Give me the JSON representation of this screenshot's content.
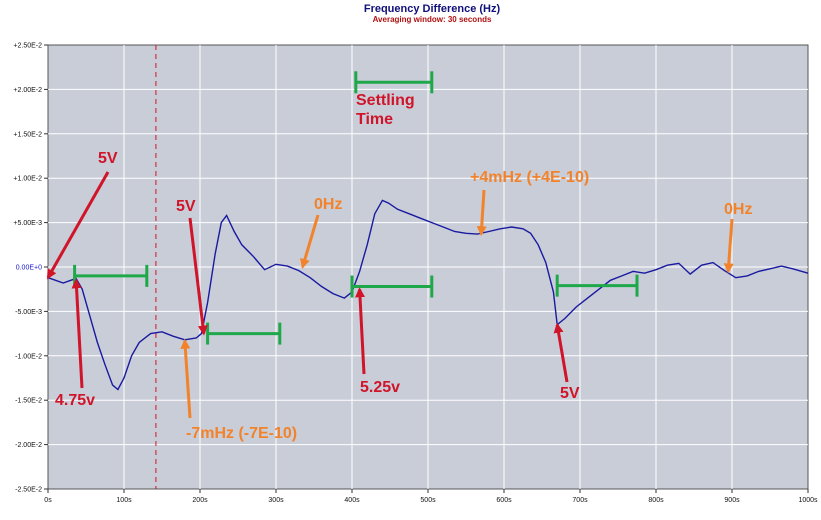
{
  "chart_data": {
    "type": "line",
    "title": "Frequency Difference (Hz)",
    "subtitle": "Averaging window: 30 seconds",
    "xlim": [
      0,
      1000
    ],
    "ylim": [
      -0.025,
      0.025
    ],
    "grid": true,
    "x_ticks": [
      {
        "value": 0,
        "label": "0s"
      },
      {
        "value": 100,
        "label": "100s"
      },
      {
        "value": 200,
        "label": "200s"
      },
      {
        "value": 300,
        "label": "300s"
      },
      {
        "value": 400,
        "label": "400s"
      },
      {
        "value": 500,
        "label": "500s"
      },
      {
        "value": 600,
        "label": "600s"
      },
      {
        "value": 700,
        "label": "700s"
      },
      {
        "value": 800,
        "label": "800s"
      },
      {
        "value": 900,
        "label": "900s"
      },
      {
        "value": 1000,
        "label": "1000s"
      }
    ],
    "y_ticks": [
      {
        "value": 0.025,
        "label": "+2.50E-2"
      },
      {
        "value": 0.02,
        "label": "+2.00E-2"
      },
      {
        "value": 0.015,
        "label": "+1.50E-2"
      },
      {
        "value": 0.01,
        "label": "+1.00E-2"
      },
      {
        "value": 0.005,
        "label": "+5.00E-3"
      },
      {
        "value": 0,
        "label": "0.00E+0"
      },
      {
        "value": -0.005,
        "label": "-5.00E-3"
      },
      {
        "value": -0.01,
        "label": "-1.00E-2"
      },
      {
        "value": -0.015,
        "label": "-1.50E-2"
      },
      {
        "value": -0.02,
        "label": "-2.00E-2"
      },
      {
        "value": -0.025,
        "label": "-2.50E-2"
      }
    ],
    "series": [
      {
        "color": "#1a1aa0",
        "x": [
          0,
          10,
          20,
          30,
          37,
          45,
          55,
          65,
          75,
          85,
          92,
          100,
          110,
          120,
          135,
          150,
          165,
          180,
          195,
          202,
          210,
          220,
          228,
          235,
          245,
          255,
          270,
          285,
          300,
          315,
          330,
          345,
          360,
          375,
          390,
          400,
          410,
          420,
          430,
          440,
          448,
          460,
          475,
          490,
          505,
          520,
          535,
          550,
          565,
          580,
          595,
          610,
          625,
          635,
          645,
          655,
          665,
          670,
          680,
          695,
          710,
          725,
          740,
          755,
          770,
          785,
          800,
          815,
          830,
          845,
          860,
          875,
          890,
          905,
          920,
          935,
          950,
          965,
          980,
          1000
        ],
        "y": [
          -0.0012,
          -0.0015,
          -0.0018,
          -0.0015,
          -0.0013,
          -0.0025,
          -0.0055,
          -0.0085,
          -0.011,
          -0.0133,
          -0.0138,
          -0.0125,
          -0.01,
          -0.0085,
          -0.0075,
          -0.0073,
          -0.0078,
          -0.0082,
          -0.008,
          -0.0075,
          -0.004,
          0.0015,
          0.005,
          0.0058,
          0.004,
          0.0025,
          0.0012,
          -0.0003,
          0.0003,
          0.0001,
          -0.0004,
          -0.0012,
          -0.0022,
          -0.003,
          -0.0035,
          -0.0028,
          -0.0005,
          0.0025,
          0.006,
          0.0075,
          0.0072,
          0.0065,
          0.006,
          0.0055,
          0.005,
          0.0045,
          0.004,
          0.0038,
          0.0037,
          0.004,
          0.0043,
          0.0045,
          0.0043,
          0.0038,
          0.0025,
          0.0005,
          -0.0028,
          -0.0065,
          -0.0058,
          -0.0045,
          -0.0035,
          -0.0025,
          -0.0015,
          -0.001,
          -0.0005,
          -0.0007,
          -0.0003,
          0.0002,
          0.0004,
          -0.0008,
          0.0002,
          0.0005,
          -0.0004,
          -0.0012,
          -0.001,
          -0.0005,
          -0.0002,
          0.0001,
          -0.0002,
          -0.0007
        ]
      }
    ],
    "marker_x": 142,
    "settling_bars": [
      {
        "x0": 35,
        "x1": 130,
        "y": -0.001
      },
      {
        "x0": 210,
        "x1": 305,
        "y": -0.0075
      },
      {
        "x0": 400,
        "x1": 505,
        "y": -0.0022
      },
      {
        "x0": 670,
        "x1": 775,
        "y": -0.0021
      }
    ],
    "settling_legend_bar": {
      "x0": 405,
      "x1": 505,
      "y": 0.0208
    },
    "annotations": [
      {
        "text": "5V",
        "color": "#d0142a",
        "tip": [
          0,
          -0.0012
        ]
      },
      {
        "text": "4.75v",
        "color": "#d0142a",
        "tip": [
          37,
          -0.0015
        ]
      },
      {
        "text": "5V",
        "color": "#d0142a",
        "tip": [
          205,
          -0.0075
        ]
      },
      {
        "text": "-7mHz (-7E-10)",
        "color": "#f2832b",
        "tip": [
          180,
          -0.0083
        ]
      },
      {
        "text": "0Hz",
        "color": "#f2832b",
        "tip": [
          335,
          0.0
        ]
      },
      {
        "text": "5.25v",
        "color": "#d0142a",
        "tip": [
          410,
          -0.0025
        ]
      },
      {
        "text": "+4mHz (+4E-10)",
        "color": "#f2832b",
        "tip": [
          570,
          0.0037
        ]
      },
      {
        "text": "5V",
        "color": "#d0142a",
        "tip": [
          670,
          -0.0065
        ]
      },
      {
        "text": "0Hz",
        "color": "#f2832b",
        "tip": [
          895,
          -0.0005
        ]
      },
      {
        "text": "Settling Time",
        "color": "#d0142a"
      }
    ]
  }
}
